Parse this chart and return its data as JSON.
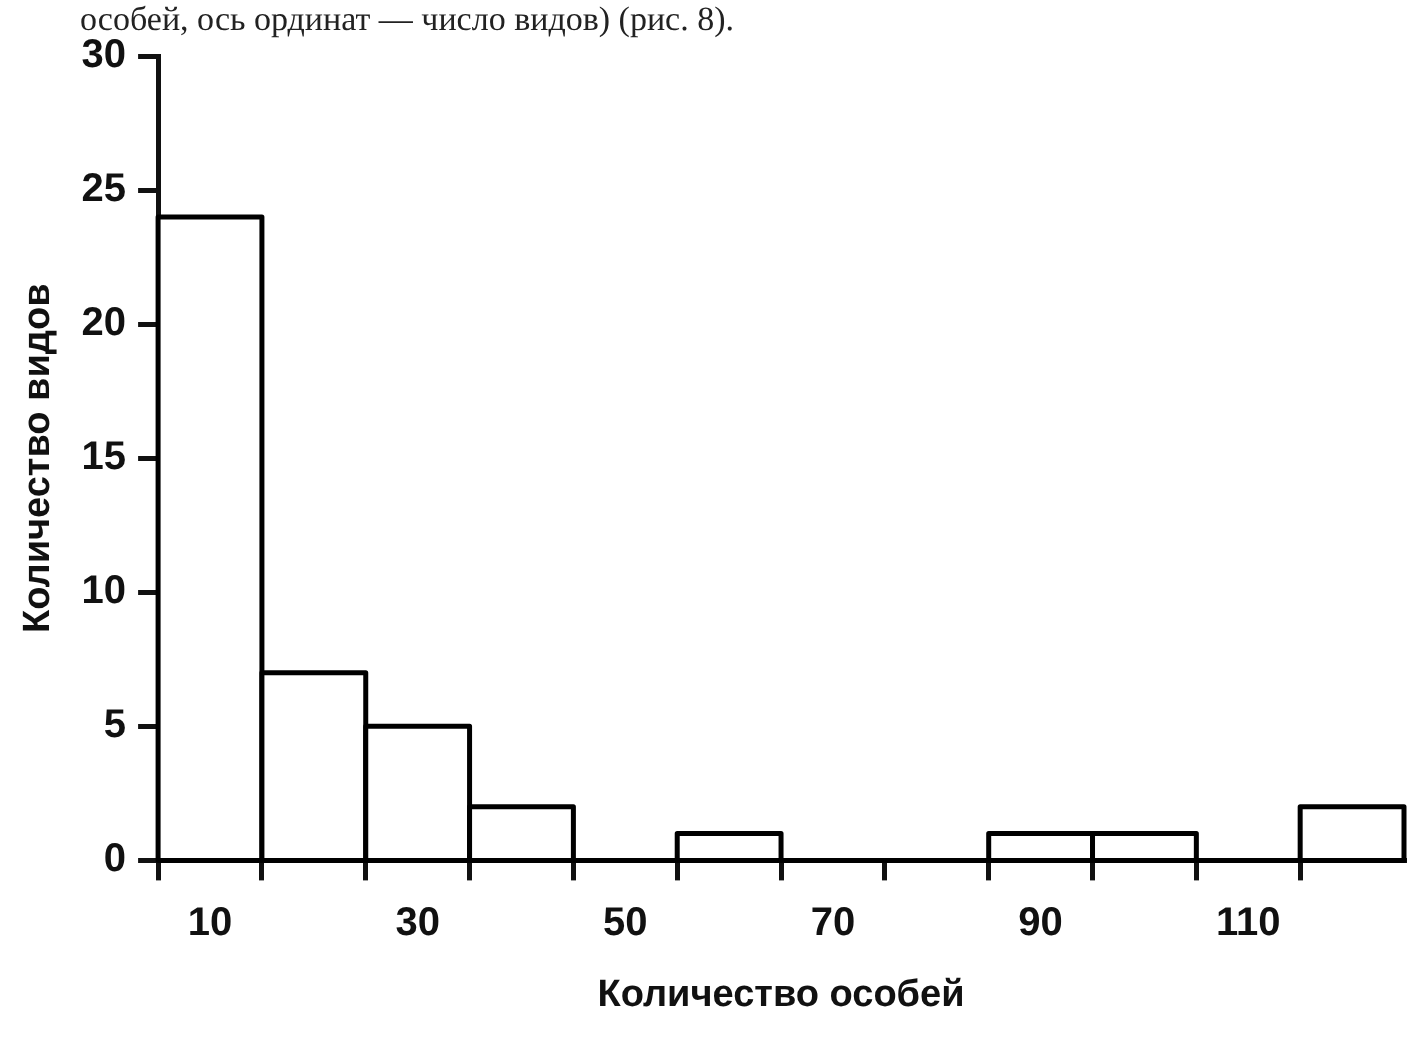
{
  "chart_data": {
    "type": "histogram",
    "xlabel": "Количество особей",
    "ylabel": "Количество видов",
    "annotations": [
      "особей, ось ординат — число видов) (рис. 8)."
    ],
    "bins": [
      5,
      15,
      25,
      35,
      45,
      55,
      65,
      75,
      85,
      95,
      105,
      115,
      125
    ],
    "values": [
      24,
      7,
      5,
      2,
      0,
      1,
      0,
      0,
      1,
      1,
      0,
      2
    ],
    "color": "#000000",
    "xlim": [
      5,
      125
    ],
    "xticks": [
      {
        "value": 5,
        "label": null
      },
      10,
      {
        "value": 15,
        "label": null
      },
      {
        "value": 25,
        "label": null
      },
      30,
      {
        "value": 35,
        "label": null
      },
      {
        "value": 45,
        "label": null
      },
      50,
      {
        "value": 55,
        "label": null
      },
      {
        "value": 65,
        "label": null
      },
      70,
      {
        "value": 75,
        "label": null
      },
      {
        "value": 85,
        "label": null
      },
      90,
      {
        "value": 95,
        "label": null
      },
      {
        "value": 105,
        "label": null
      },
      110,
      {
        "value": 115,
        "label": null
      }
    ],
    "ylim": [
      0,
      30
    ],
    "yticks": [
      0,
      5,
      10,
      15,
      20,
      25,
      30
    ],
    "grid": false,
    "legend": false
  }
}
